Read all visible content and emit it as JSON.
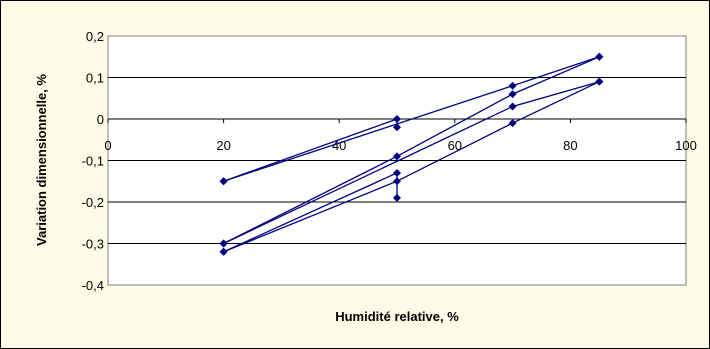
{
  "chart_data": {
    "type": "line",
    "title": "",
    "xlabel": "Humidité relative, %",
    "ylabel": "Variation dimensionnelle, %",
    "xlim": [
      0,
      100
    ],
    "ylim": [
      -0.4,
      0.2
    ],
    "x_ticks": [
      0,
      20,
      40,
      60,
      80,
      100
    ],
    "y_ticks": [
      0.2,
      0.1,
      0,
      -0.1,
      -0.2,
      -0.3,
      -0.4
    ],
    "x_tick_labels": [
      "0",
      "20",
      "40",
      "60",
      "80",
      "100"
    ],
    "y_tick_labels": [
      "0,2",
      "0,1",
      "0",
      "-0,1",
      "-0,2",
      "-0,3",
      "-0,4"
    ],
    "grid": "horizontal",
    "legend": "none",
    "colors": {
      "series": "#000080",
      "plot_bg": "#ffffff",
      "chart_bg": "#fffbe6"
    },
    "series": [
      {
        "x": [
          20,
          50,
          50
        ],
        "y": [
          -0.15,
          0,
          -0.02
        ]
      },
      {
        "x": [
          20,
          70,
          85
        ],
        "y": [
          -0.15,
          0.08,
          0.15
        ]
      },
      {
        "x": [
          85,
          70,
          50,
          20
        ],
        "y": [
          0.15,
          0.06,
          -0.09,
          -0.3
        ]
      },
      {
        "x": [
          20,
          70,
          85
        ],
        "y": [
          -0.3,
          0.03,
          0.09
        ]
      },
      {
        "x": [
          85,
          70,
          50,
          20
        ],
        "y": [
          0.09,
          -0.01,
          -0.15,
          -0.32
        ]
      },
      {
        "x": [
          20,
          50,
          50
        ],
        "y": [
          -0.32,
          -0.13,
          -0.19
        ]
      }
    ]
  }
}
